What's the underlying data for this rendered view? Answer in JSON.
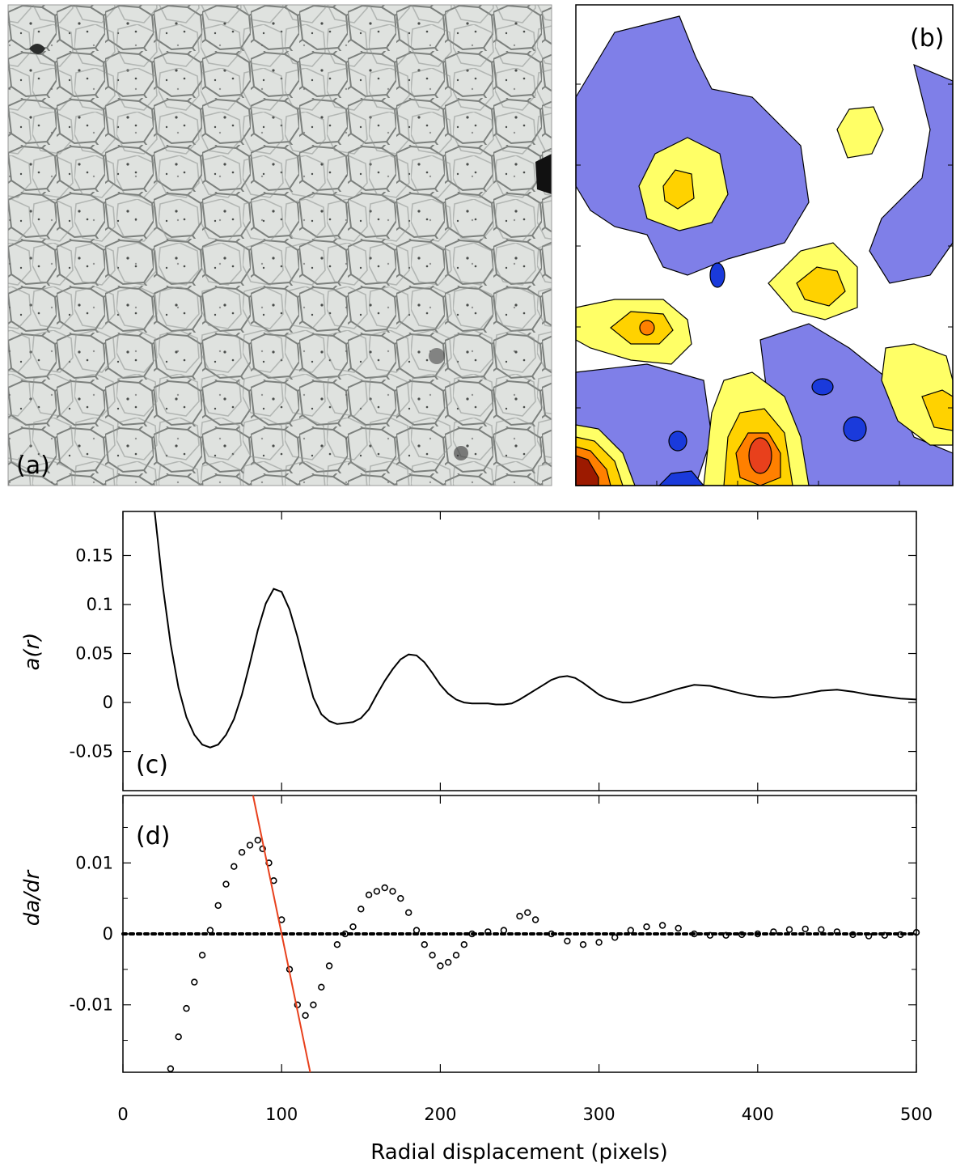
{
  "panels": {
    "a": {
      "label": "(a)"
    },
    "b": {
      "label": "(b)"
    },
    "c": {
      "label": "(c)"
    },
    "d": {
      "label": "(d)"
    }
  },
  "chart_data": [
    {
      "panel": "c",
      "type": "line",
      "xlabel": "",
      "ylabel": "a(r)",
      "xlim": [
        0,
        500
      ],
      "ylim": [
        -0.09,
        0.195
      ],
      "yticks": [
        -0.05,
        0,
        0.05,
        0.1,
        0.15
      ],
      "ytick_labels": [
        "-0.05",
        "0",
        "0.05",
        "0.1",
        "0.15"
      ],
      "x": [
        20,
        25,
        30,
        35,
        40,
        45,
        50,
        55,
        60,
        65,
        70,
        75,
        80,
        85,
        90,
        95,
        100,
        105,
        110,
        115,
        120,
        125,
        130,
        135,
        140,
        145,
        150,
        155,
        160,
        165,
        170,
        175,
        180,
        185,
        190,
        195,
        200,
        205,
        210,
        215,
        220,
        225,
        230,
        235,
        240,
        245,
        250,
        255,
        260,
        265,
        270,
        275,
        280,
        285,
        290,
        295,
        300,
        305,
        310,
        315,
        320,
        330,
        340,
        350,
        360,
        370,
        380,
        390,
        400,
        410,
        420,
        430,
        440,
        450,
        460,
        470,
        480,
        490,
        500
      ],
      "y": [
        0.2,
        0.12,
        0.06,
        0.015,
        -0.015,
        -0.033,
        -0.043,
        -0.046,
        -0.043,
        -0.033,
        -0.017,
        0.008,
        0.04,
        0.074,
        0.101,
        0.116,
        0.113,
        0.095,
        0.067,
        0.035,
        0.005,
        -0.012,
        -0.019,
        -0.022,
        -0.021,
        -0.02,
        -0.016,
        -0.007,
        0.008,
        0.022,
        0.034,
        0.044,
        0.049,
        0.048,
        0.041,
        0.03,
        0.018,
        0.009,
        0.003,
        0.0,
        -0.001,
        -0.001,
        -0.001,
        -0.002,
        -0.002,
        -0.001,
        0.003,
        0.008,
        0.013,
        0.018,
        0.023,
        0.026,
        0.027,
        0.025,
        0.02,
        0.014,
        0.008,
        0.004,
        0.002,
        0.0,
        0.0,
        0.004,
        0.009,
        0.014,
        0.018,
        0.017,
        0.013,
        0.009,
        0.006,
        0.005,
        0.006,
        0.009,
        0.012,
        0.013,
        0.011,
        0.008,
        0.006,
        0.004,
        0.003
      ]
    },
    {
      "panel": "d",
      "type": "scatter",
      "xlabel": "Radial displacement (pixels)",
      "ylabel": "da/dr",
      "xlim": [
        0,
        500
      ],
      "ylim": [
        -0.0195,
        0.0195
      ],
      "xticks": [
        0,
        100,
        200,
        300,
        400,
        500
      ],
      "xtick_labels": [
        "0",
        "100",
        "200",
        "300",
        "400",
        "500"
      ],
      "yticks": [
        -0.01,
        0,
        0.01
      ],
      "ytick_labels": [
        "-0.01",
        "0",
        "0.01"
      ],
      "x": [
        30,
        35,
        40,
        45,
        50,
        55,
        60,
        65,
        70,
        75,
        80,
        85,
        88,
        92,
        95,
        100,
        105,
        110,
        115,
        120,
        125,
        130,
        135,
        140,
        145,
        150,
        155,
        160,
        165,
        170,
        175,
        180,
        185,
        190,
        195,
        200,
        205,
        210,
        215,
        220,
        230,
        240,
        250,
        255,
        260,
        270,
        280,
        290,
        300,
        310,
        320,
        330,
        340,
        350,
        360,
        370,
        380,
        390,
        400,
        410,
        420,
        430,
        440,
        450,
        460,
        470,
        480,
        490,
        500
      ],
      "y": [
        -0.019,
        -0.0145,
        -0.0105,
        -0.0068,
        -0.003,
        0.0005,
        0.004,
        0.007,
        0.0095,
        0.0115,
        0.0125,
        0.0132,
        0.012,
        0.01,
        0.0075,
        0.002,
        -0.005,
        -0.01,
        -0.0115,
        -0.01,
        -0.0075,
        -0.0045,
        -0.0015,
        0.0,
        0.001,
        0.0035,
        0.0055,
        0.006,
        0.0065,
        0.006,
        0.005,
        0.003,
        0.0005,
        -0.0015,
        -0.003,
        -0.0045,
        -0.004,
        -0.003,
        -0.0015,
        0.0,
        0.0003,
        0.0005,
        0.0025,
        0.003,
        0.002,
        0.0,
        -0.001,
        -0.0015,
        -0.0012,
        -0.0005,
        0.0005,
        0.001,
        0.0012,
        0.0008,
        0.0,
        -0.0002,
        -0.0002,
        -0.0001,
        0.0,
        0.0003,
        0.0006,
        0.0007,
        0.0006,
        0.0003,
        -0.0001,
        -0.0003,
        -0.0002,
        -0.0001,
        0.0002
      ],
      "zero_line": {
        "y": 0,
        "style": "dotted"
      },
      "fit_line": {
        "x": [
          82,
          118
        ],
        "y": [
          0.0204,
          -0.0202
        ],
        "color": "#e8401c"
      }
    }
  ],
  "contour_colors": {
    "deep_blue": "#1a3adb",
    "blue": "#7f7fe8",
    "light_yellow": "#ffff66",
    "yellow": "#ffd200",
    "orange": "#ff8000",
    "red": "#e8401c",
    "dark_red": "#9c1a00"
  }
}
